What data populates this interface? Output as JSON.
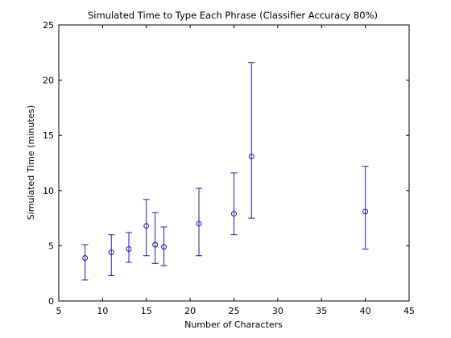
{
  "chart_data": {
    "type": "scatter",
    "title": "Simulated Time to Type Each Phrase (Classifier Accuracy 80%)",
    "xlabel": "Number of Characters",
    "ylabel": "Simulated Time (minutes)",
    "xlim": [
      5,
      45
    ],
    "ylim": [
      0,
      25
    ],
    "xticks": [
      5,
      10,
      15,
      20,
      25,
      30,
      35,
      40,
      45
    ],
    "yticks": [
      0,
      5,
      10,
      15,
      20,
      25
    ],
    "grid": false,
    "legend": "none",
    "series": [
      {
        "marker": "circle",
        "color": "#1f1fa8",
        "points": [
          {
            "x": 8,
            "y": 3.9,
            "low": 1.9,
            "high": 5.1
          },
          {
            "x": 11,
            "y": 4.4,
            "low": 2.3,
            "high": 6.0
          },
          {
            "x": 13,
            "y": 4.7,
            "low": 3.5,
            "high": 6.2
          },
          {
            "x": 15,
            "y": 6.8,
            "low": 4.1,
            "high": 9.2
          },
          {
            "x": 16,
            "y": 5.1,
            "low": 3.4,
            "high": 8.0
          },
          {
            "x": 17,
            "y": 4.9,
            "low": 3.2,
            "high": 6.7
          },
          {
            "x": 21,
            "y": 7.0,
            "low": 4.1,
            "high": 10.2
          },
          {
            "x": 25,
            "y": 7.9,
            "low": 6.0,
            "high": 11.6
          },
          {
            "x": 27,
            "y": 13.1,
            "low": 7.5,
            "high": 21.6
          },
          {
            "x": 40,
            "y": 8.1,
            "low": 4.7,
            "high": 12.2
          }
        ]
      }
    ]
  }
}
